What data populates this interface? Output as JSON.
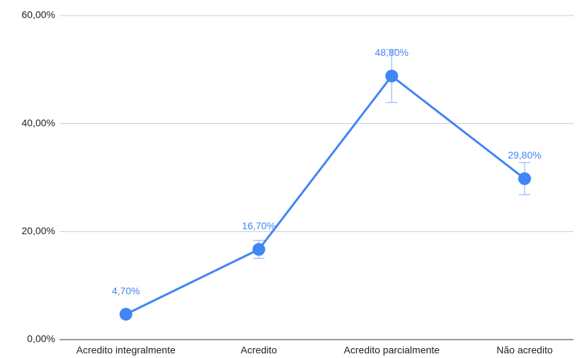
{
  "chart_data": {
    "type": "line",
    "categories": [
      "Acredito integralmente",
      "Acredito",
      "Acredito parcialmente",
      "Não acredito"
    ],
    "series": [
      {
        "color": "#4285f4",
        "values": [
          4.7,
          16.7,
          48.8,
          29.8
        ],
        "value_labels": [
          "4,70%",
          "16,70%",
          "48,80%",
          "29,80%"
        ],
        "errors": [
          0.47,
          1.67,
          4.88,
          2.98
        ]
      }
    ],
    "ylim": [
      0,
      60
    ],
    "yticks": [
      {
        "value": 0,
        "label": "0,00%"
      },
      {
        "value": 20,
        "label": "20,00%"
      },
      {
        "value": 40,
        "label": "40,00%"
      },
      {
        "value": 60,
        "label": "60,00%"
      }
    ],
    "grid": true
  }
}
